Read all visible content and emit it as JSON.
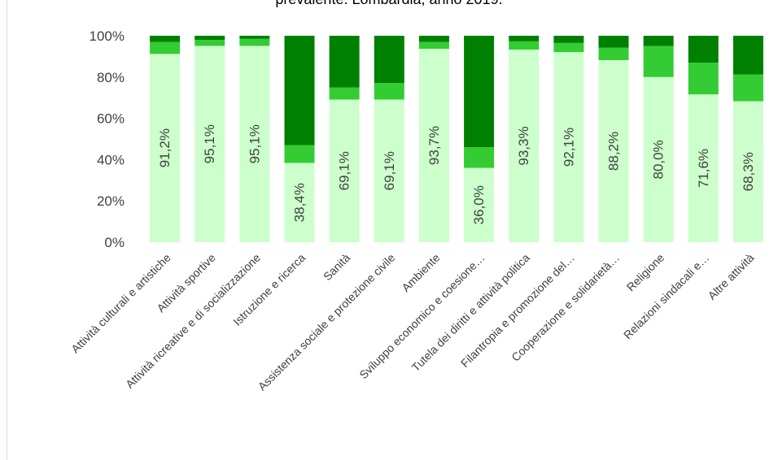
{
  "chart_data": {
    "type": "bar",
    "stacked": true,
    "percent": true,
    "title": "prevalente. Lombardia, anno 2019.",
    "categories": [
      "Attività culturali e artistiche",
      "Attività sportive",
      "Attività ricreative e di socializzazione",
      "Istruzione e ricerca",
      "Sanità",
      "Assistenza sociale e protezione civile",
      "Ambiente",
      "Sviluppo economico e coesione…",
      "Tutela dei diritti e attività politica",
      "Filantropia e promozione del…",
      "Cooperazione e solidarietà…",
      "Religione",
      "Relazioni sindacali e…",
      "Altre attività"
    ],
    "series": [
      {
        "color": "#ccffcc",
        "values": [
          91.2,
          95.1,
          95.1,
          38.4,
          69.1,
          69.1,
          93.7,
          36.0,
          93.3,
          92.1,
          88.2,
          80.0,
          71.6,
          68.3
        ],
        "labels": [
          "91,2%",
          "95,1%",
          "95,1%",
          "38,4%",
          "69,1%",
          "69,1%",
          "93,7%",
          "36,0%",
          "93,3%",
          "92,1%",
          "88,2%",
          "80,0%",
          "71,6%",
          "68,3%"
        ]
      },
      {
        "color": "#33cc33",
        "values": [
          5.8,
          2.9,
          3.4,
          8.6,
          5.9,
          8.0,
          3.3,
          10.0,
          4.0,
          4.4,
          6.0,
          15.0,
          15.4,
          13.0
        ]
      },
      {
        "color": "#008000",
        "values": [
          3.0,
          2.0,
          1.5,
          53.0,
          25.0,
          22.9,
          3.0,
          54.0,
          2.7,
          3.5,
          5.8,
          5.0,
          13.0,
          18.7
        ]
      }
    ],
    "ylim": [
      0,
      100
    ],
    "yticks": [
      "0%",
      "20%",
      "40%",
      "60%",
      "80%",
      "100%"
    ],
    "grid": false,
    "legend": "none"
  }
}
